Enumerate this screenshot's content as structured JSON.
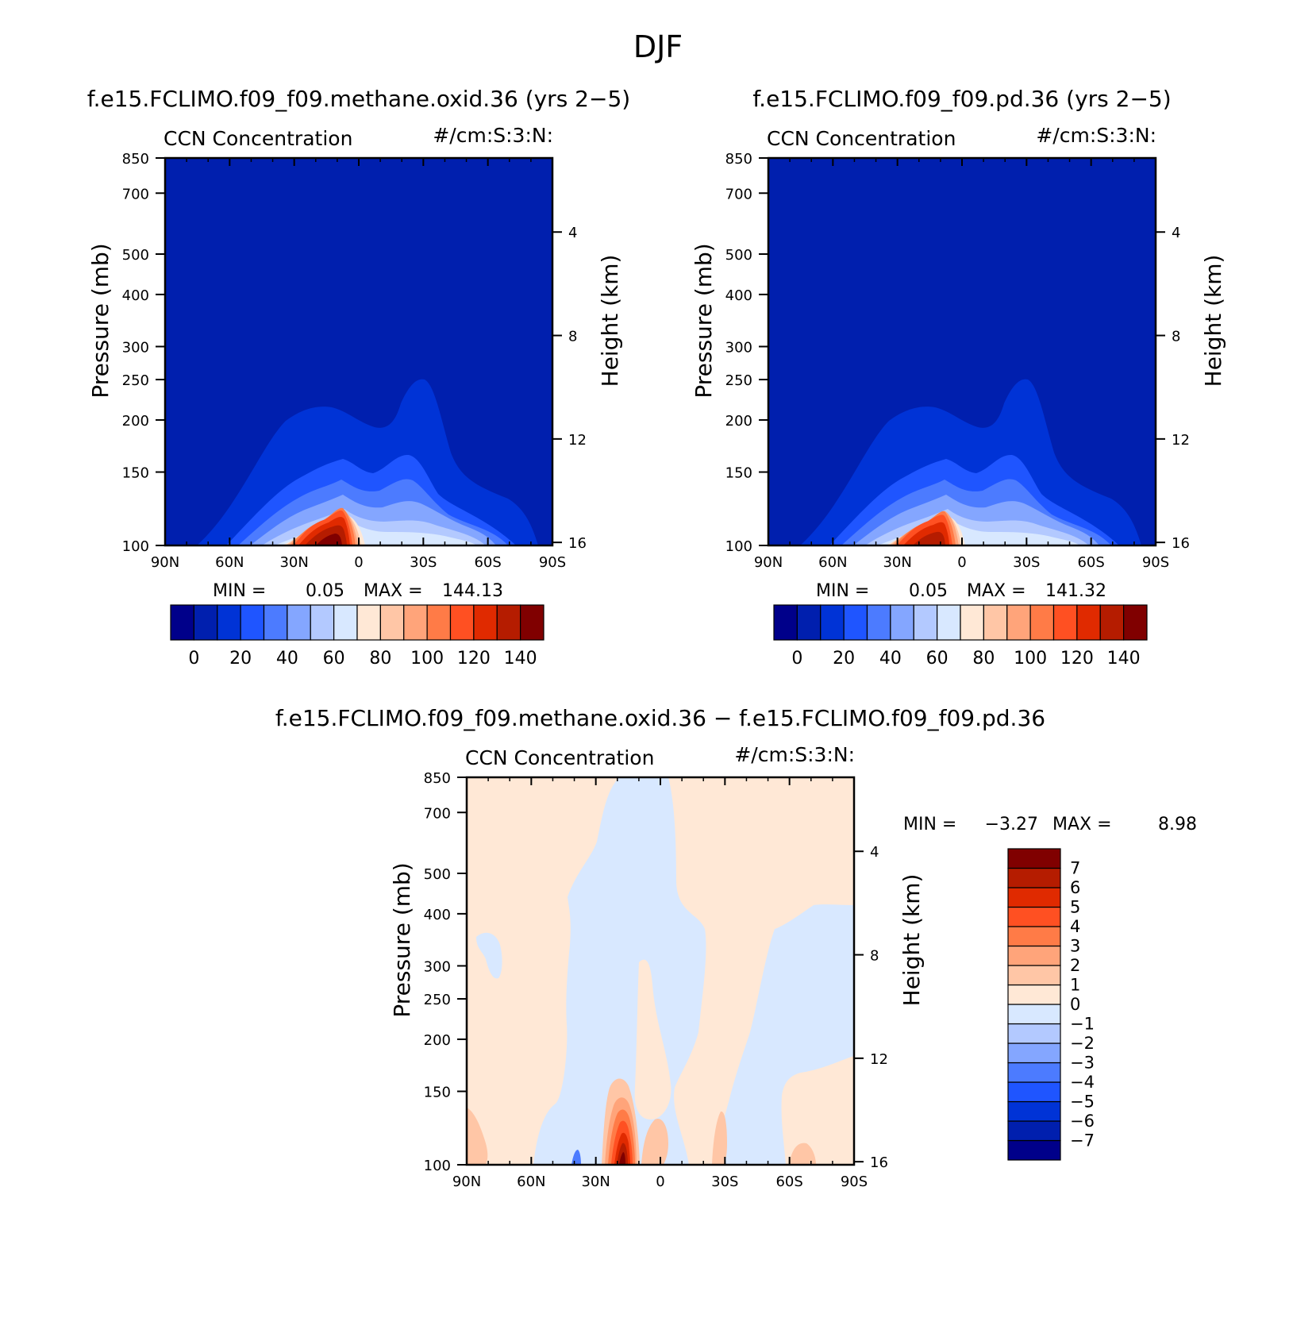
{
  "figure": {
    "title": "DJF"
  },
  "chart_data": [
    {
      "type": "heatmap",
      "title": "f.e15.FCLIMO.f09_f09.methane.oxid.36 (yrs 2−5)",
      "variable": "CCN Concentration",
      "units": "#/cm:S:3:N:",
      "ylabel": "Pressure (mb)",
      "ylabel_right": "Height (km)",
      "x_ticks": [
        "90N",
        "60N",
        "30N",
        "0",
        "30S",
        "60S",
        "90S"
      ],
      "y_ticks": [
        "100",
        "150",
        "200",
        "250",
        "300",
        "400",
        "500",
        "700",
        "850"
      ],
      "y_ticks_right": [
        "16",
        "12",
        "8",
        "4"
      ],
      "xlim": [
        90,
        -90
      ],
      "ylim": [
        850,
        100
      ],
      "y_scale": "log",
      "min_label": "MIN =",
      "min_value": "0.05",
      "max_label": "MAX =",
      "max_value": "144.13",
      "color_levels": [
        "#00008a",
        "#001fae",
        "#0033d6",
        "#1f55ff",
        "#4c7bff",
        "#84a6ff",
        "#b3c9ff",
        "#d8e8ff",
        "#ffe8d6",
        "#ffc6a6",
        "#ffa47a",
        "#ff7b47",
        "#ff5022",
        "#e02a00",
        "#b51c00",
        "#800000"
      ],
      "colorbar_ticks": [
        "0",
        "20",
        "40",
        "60",
        "80",
        "100",
        "120",
        "140"
      ],
      "colorbar_placement": "bottom"
    },
    {
      "type": "heatmap",
      "title": "f.e15.FCLIMO.f09_f09.pd.36 (yrs 2−5)",
      "variable": "CCN Concentration",
      "units": "#/cm:S:3:N:",
      "ylabel": "Pressure (mb)",
      "ylabel_right": "Height (km)",
      "x_ticks": [
        "90N",
        "60N",
        "30N",
        "0",
        "30S",
        "60S",
        "90S"
      ],
      "y_ticks": [
        "100",
        "150",
        "200",
        "250",
        "300",
        "400",
        "500",
        "700",
        "850"
      ],
      "y_ticks_right": [
        "16",
        "12",
        "8",
        "4"
      ],
      "xlim": [
        90,
        -90
      ],
      "ylim": [
        850,
        100
      ],
      "y_scale": "log",
      "min_label": "MIN =",
      "min_value": "0.05",
      "max_label": "MAX =",
      "max_value": "141.32",
      "color_levels": [
        "#00008a",
        "#001fae",
        "#0033d6",
        "#1f55ff",
        "#4c7bff",
        "#84a6ff",
        "#b3c9ff",
        "#d8e8ff",
        "#ffe8d6",
        "#ffc6a6",
        "#ffa47a",
        "#ff7b47",
        "#ff5022",
        "#e02a00",
        "#b51c00",
        "#800000"
      ],
      "colorbar_ticks": [
        "0",
        "20",
        "40",
        "60",
        "80",
        "100",
        "120",
        "140"
      ],
      "colorbar_placement": "bottom"
    },
    {
      "type": "heatmap",
      "title": "f.e15.FCLIMO.f09_f09.methane.oxid.36 − f.e15.FCLIMO.f09_f09.pd.36",
      "variable": "CCN Concentration",
      "units": "#/cm:S:3:N:",
      "ylabel": "Pressure (mb)",
      "ylabel_right": "Height (km)",
      "x_ticks": [
        "90N",
        "60N",
        "30N",
        "0",
        "30S",
        "60S",
        "90S"
      ],
      "y_ticks": [
        "100",
        "150",
        "200",
        "250",
        "300",
        "400",
        "500",
        "700",
        "850"
      ],
      "y_ticks_right": [
        "16",
        "12",
        "8",
        "4"
      ],
      "xlim": [
        90,
        -90
      ],
      "ylim": [
        850,
        100
      ],
      "y_scale": "log",
      "min_label": "MIN =",
      "min_value": "−3.27",
      "max_label": "MAX =",
      "max_value": "8.98",
      "color_levels": [
        "#00008a",
        "#001fae",
        "#0033d6",
        "#1f55ff",
        "#4c7bff",
        "#84a6ff",
        "#b3c9ff",
        "#d8e8ff",
        "#ffe8d6",
        "#ffc6a6",
        "#ffa47a",
        "#ff7b47",
        "#ff5022",
        "#e02a00",
        "#b51c00",
        "#800000"
      ],
      "colorbar_ticks": [
        "7",
        "6",
        "5",
        "4",
        "3",
        "2",
        "1",
        "0",
        "−1",
        "−2",
        "−3",
        "−4",
        "−5",
        "−6",
        "−7"
      ],
      "colorbar_placement": "right"
    }
  ]
}
